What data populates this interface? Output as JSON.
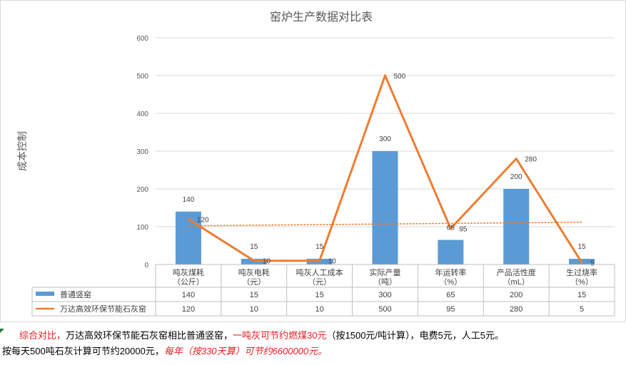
{
  "chart_data": {
    "type": "bar+line",
    "title": "窑炉生产数据对比表",
    "ylabel": "成本控制",
    "ylim": [
      0,
      600
    ],
    "yticks": [
      0,
      100,
      200,
      300,
      400,
      500,
      600
    ],
    "categories": [
      [
        "吨灰煤耗",
        "（公斤）"
      ],
      [
        "吨灰电耗",
        "（元）"
      ],
      [
        "吨灰人工成本",
        "（元）"
      ],
      [
        "实际产量",
        "（吨）"
      ],
      [
        "年运转率",
        "（%）"
      ],
      [
        "产品活性度",
        "（mL）"
      ],
      [
        "生过烧率",
        "（%）"
      ]
    ],
    "series": [
      {
        "name": "普通竖窑",
        "type": "bar",
        "values": [
          140,
          15,
          15,
          300,
          65,
          200,
          15
        ]
      },
      {
        "name": "万达高效环保节能石灰窑",
        "type": "line",
        "values": [
          120,
          10,
          10,
          500,
          95,
          280,
          5
        ]
      }
    ],
    "trendline": {
      "series": "普通竖窑",
      "style": "dotted"
    },
    "grid": true,
    "legend": "data-table",
    "colors": {
      "bar": "#5b9bd5",
      "line": "#ed7d31",
      "grid": "#d9d9d9"
    }
  },
  "note": {
    "l1_a": "综合对比，",
    "l1_b": "万达高效环保节能石灰窑相比普通竖窑，",
    "l1_c": "一吨灰可节约燃煤30元",
    "l1_d": "（按1500元/吨计算），电费5元，人工5元。",
    "l2_a": "按每天500吨石灰计算可节约20000元，",
    "l2_b": "每年（按330天算）可节约6600000元。"
  }
}
